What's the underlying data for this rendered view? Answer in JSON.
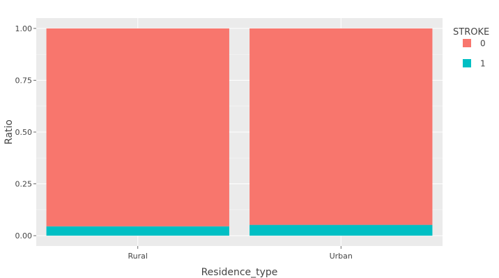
{
  "chart_data": {
    "type": "bar",
    "stacked": true,
    "title": "",
    "xlabel": "Residence_type",
    "ylabel": "Ratio",
    "categories": [
      "Rural",
      "Urban"
    ],
    "series": [
      {
        "name": "0",
        "values": [
          0.955,
          0.948
        ],
        "color": "#F8766D"
      },
      {
        "name": "1",
        "values": [
          0.045,
          0.052
        ],
        "color": "#00BFC4"
      }
    ],
    "ylim": [
      -0.05,
      1.05
    ],
    "yticks": [
      0.0,
      0.25,
      0.5,
      0.75,
      1.0
    ],
    "ytick_labels": [
      "0.00",
      "0.25",
      "0.50",
      "0.75",
      "1.00"
    ],
    "grid": true,
    "legend": {
      "title": "STROKE",
      "position": "right",
      "entries": [
        "0",
        "1"
      ]
    },
    "colors": {
      "panel_background": "#EBEBEB",
      "grid_major": "#FFFFFF",
      "text": "#444444"
    }
  }
}
